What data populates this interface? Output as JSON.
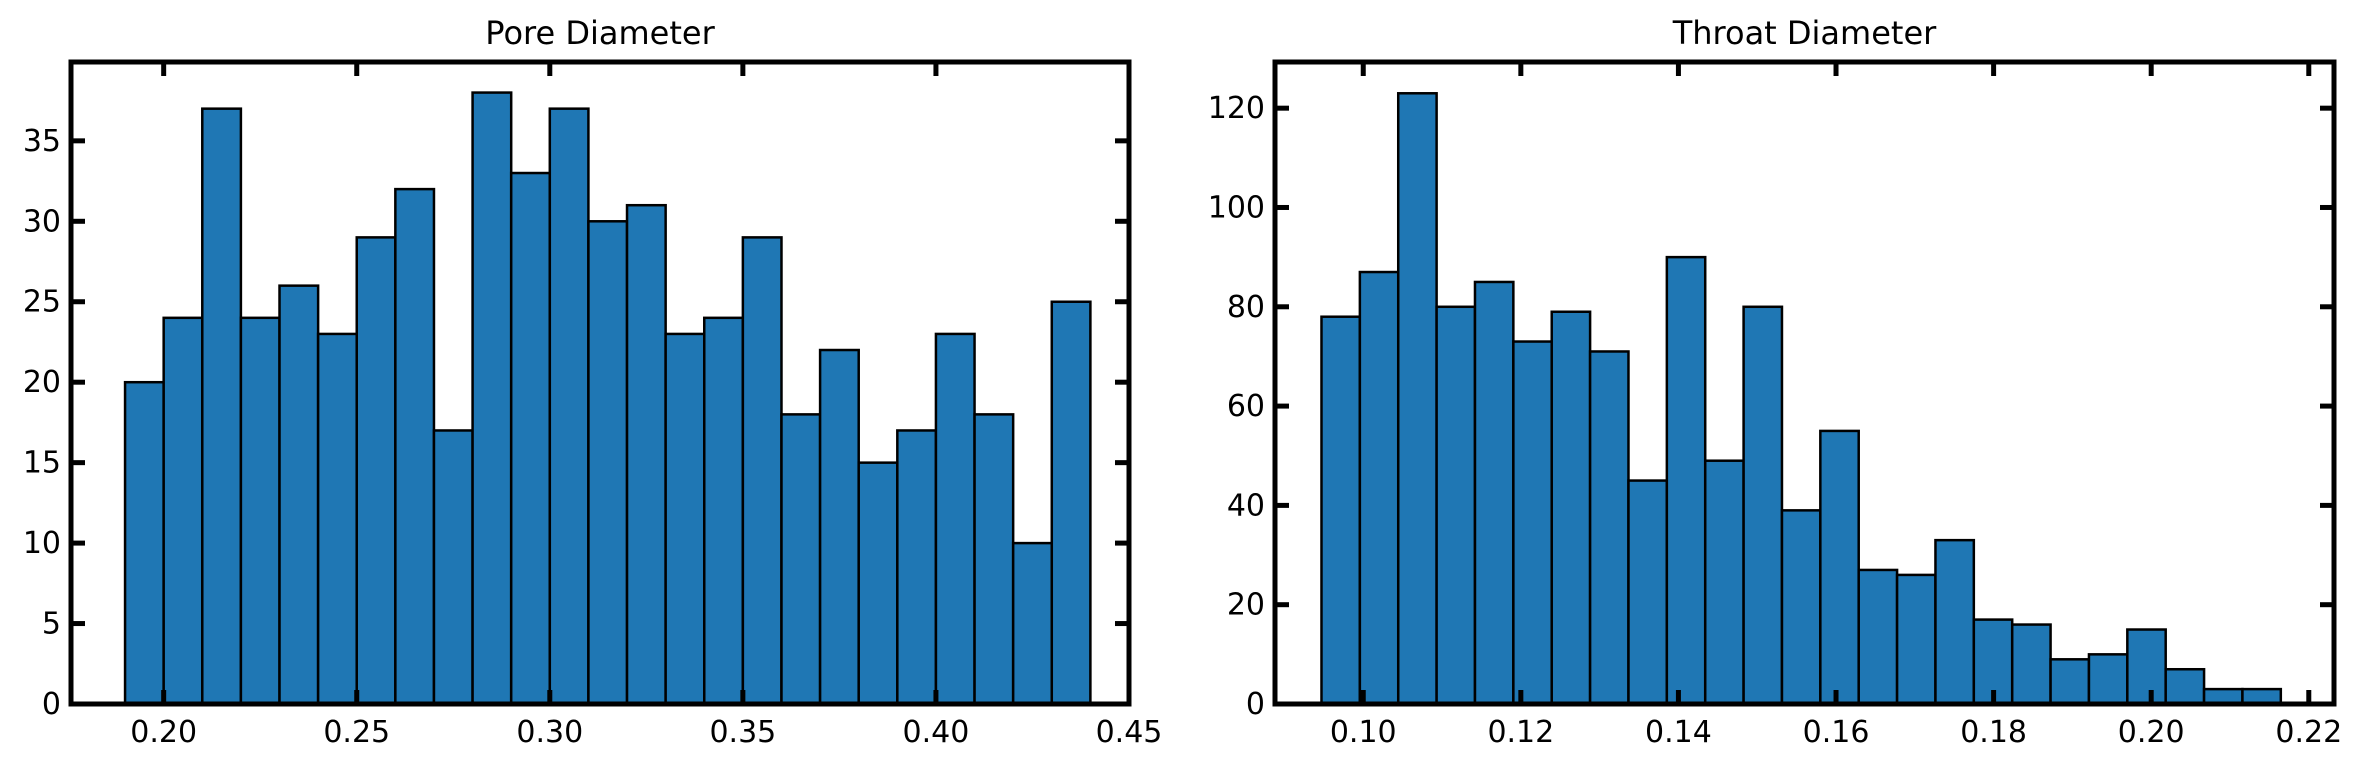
{
  "chart_data": [
    {
      "type": "bar",
      "title": "Pore Diameter",
      "bar_color": "#1f77b4",
      "bin_start": 0.19,
      "bin_width": 0.01,
      "values": [
        20,
        24,
        37,
        24,
        26,
        23,
        29,
        32,
        17,
        38,
        33,
        37,
        30,
        31,
        23,
        24,
        29,
        18,
        22,
        15,
        17,
        23,
        18,
        10,
        25
      ],
      "xlim": [
        0.176,
        0.45
      ],
      "ylim": [
        0,
        39.9
      ],
      "xticks": [
        0.2,
        0.25,
        0.3,
        0.35,
        0.4,
        0.45
      ],
      "xtick_labels": [
        "0.20",
        "0.25",
        "0.30",
        "0.35",
        "0.40",
        "0.45"
      ],
      "yticks": [
        0,
        5,
        10,
        15,
        20,
        25,
        30,
        35
      ],
      "ytick_labels": [
        "0",
        "5",
        "10",
        "15",
        "20",
        "25",
        "30",
        "35"
      ],
      "grid": false
    },
    {
      "type": "bar",
      "title": "Throat Diameter",
      "bar_color": "#1f77b4",
      "bin_start": 0.0947,
      "bin_width": 0.00487,
      "values": [
        78,
        87,
        123,
        80,
        85,
        73,
        79,
        71,
        45,
        90,
        49,
        80,
        39,
        55,
        27,
        26,
        33,
        17,
        16,
        9,
        10,
        15,
        7,
        3,
        3
      ],
      "xlim": [
        0.0888,
        0.2232
      ],
      "ylim": [
        0,
        129.3
      ],
      "xticks": [
        0.1,
        0.12,
        0.14,
        0.16,
        0.18,
        0.2,
        0.22
      ],
      "xtick_labels": [
        "0.10",
        "0.12",
        "0.14",
        "0.16",
        "0.18",
        "0.20",
        "0.22"
      ],
      "yticks": [
        0,
        20,
        40,
        60,
        80,
        100,
        120
      ],
      "ytick_labels": [
        "0",
        "20",
        "40",
        "60",
        "80",
        "100",
        "120"
      ],
      "grid": false
    }
  ]
}
